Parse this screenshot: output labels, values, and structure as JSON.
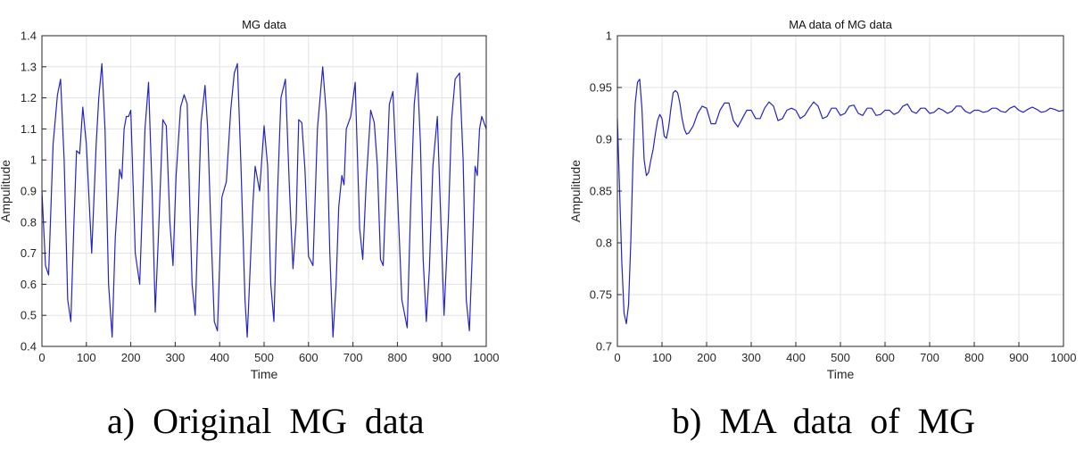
{
  "captions": {
    "a": "a)  Original  MG  data",
    "b": "b)  MA  data  of  MG"
  },
  "chart_data": [
    {
      "type": "line",
      "title": "MG data",
      "xlabel": "Time",
      "ylabel": "Ampulitude",
      "xlim": [
        0,
        1000
      ],
      "ylim": [
        0.4,
        1.4
      ],
      "xticks": [
        0,
        100,
        200,
        300,
        400,
        500,
        600,
        700,
        800,
        900,
        1000
      ],
      "yticks": [
        0.4,
        0.5,
        0.6,
        0.7,
        0.8,
        0.9,
        1,
        1.1,
        1.2,
        1.3,
        1.4
      ],
      "grid": true,
      "line_color": "#2323c8",
      "series": [
        {
          "x": [
            0,
            8,
            15,
            25,
            35,
            42,
            50,
            58,
            65,
            72,
            78,
            85,
            92,
            100,
            112,
            122,
            128,
            135,
            142,
            150,
            158,
            165,
            175,
            180,
            185,
            190,
            195,
            200,
            210,
            220,
            232,
            240,
            248,
            255,
            262,
            272,
            280,
            288,
            295,
            302,
            312,
            320,
            327,
            333,
            338,
            345,
            358,
            367,
            373,
            380,
            388,
            395,
            405,
            415,
            425,
            433,
            440,
            448,
            457,
            462,
            470,
            475,
            480,
            490,
            500,
            508,
            515,
            522,
            530,
            538,
            548,
            557,
            565,
            572,
            578,
            585,
            592,
            600,
            610,
            620,
            632,
            640,
            648,
            655,
            662,
            668,
            675,
            680,
            685,
            695,
            705,
            715,
            722,
            730,
            740,
            748,
            755,
            762,
            768,
            775,
            782,
            790,
            800,
            810,
            822,
            830,
            838,
            845,
            852,
            858,
            865,
            872,
            880,
            890,
            905,
            915,
            922,
            930,
            940,
            948,
            955,
            962,
            968,
            975,
            980,
            985,
            990,
            995,
            1000
          ],
          "y": [
            0.9,
            0.66,
            0.63,
            1.05,
            1.21,
            1.26,
            1.0,
            0.55,
            0.48,
            0.8,
            1.03,
            1.02,
            1.17,
            1.05,
            0.7,
            1.05,
            1.2,
            1.31,
            1.1,
            0.6,
            0.43,
            0.75,
            0.97,
            0.94,
            1.1,
            1.14,
            1.14,
            1.16,
            0.7,
            0.6,
            1.1,
            1.25,
            0.9,
            0.51,
            0.75,
            1.13,
            1.11,
            0.8,
            0.66,
            0.95,
            1.17,
            1.21,
            1.18,
            0.85,
            0.6,
            0.5,
            1.12,
            1.24,
            1.1,
            0.8,
            0.48,
            0.45,
            0.88,
            0.93,
            1.16,
            1.28,
            1.31,
            0.98,
            0.55,
            0.43,
            0.7,
            0.86,
            0.98,
            0.9,
            1.11,
            0.98,
            0.6,
            0.48,
            0.88,
            1.2,
            1.26,
            0.91,
            0.65,
            0.8,
            1.13,
            1.12,
            0.97,
            0.69,
            0.66,
            1.1,
            1.3,
            1.15,
            0.7,
            0.43,
            0.6,
            0.85,
            0.95,
            0.92,
            1.1,
            1.14,
            1.25,
            0.78,
            0.68,
            0.93,
            1.16,
            1.12,
            0.98,
            0.68,
            0.66,
            0.92,
            1.18,
            1.22,
            0.9,
            0.55,
            0.46,
            0.85,
            1.18,
            1.28,
            1.05,
            0.68,
            0.48,
            0.65,
            0.98,
            1.14,
            0.5,
            0.82,
            1.13,
            1.26,
            1.28,
            1.0,
            0.55,
            0.45,
            0.68,
            0.98,
            0.95,
            1.1,
            1.14,
            1.12,
            1.1
          ]
        }
      ]
    },
    {
      "type": "line",
      "title": "MA data of MG data",
      "xlabel": "Time",
      "ylabel": "Ampulitude",
      "xlim": [
        0,
        1000
      ],
      "ylim": [
        0.7,
        1
      ],
      "xticks": [
        0,
        100,
        200,
        300,
        400,
        500,
        600,
        700,
        800,
        900,
        1000
      ],
      "yticks": [
        0.7,
        0.75,
        0.8,
        0.85,
        0.9,
        0.95,
        1
      ],
      "grid": true,
      "line_color": "#2323c8",
      "series": [
        {
          "x": [
            0,
            5,
            10,
            15,
            20,
            25,
            30,
            35,
            40,
            45,
            50,
            55,
            60,
            65,
            70,
            75,
            80,
            85,
            90,
            95,
            100,
            105,
            110,
            115,
            120,
            125,
            130,
            135,
            140,
            145,
            150,
            155,
            160,
            170,
            180,
            190,
            200,
            210,
            220,
            230,
            240,
            250,
            260,
            270,
            280,
            290,
            300,
            310,
            320,
            330,
            340,
            350,
            360,
            370,
            380,
            390,
            400,
            410,
            420,
            430,
            440,
            450,
            460,
            470,
            480,
            490,
            500,
            510,
            520,
            530,
            540,
            550,
            560,
            570,
            580,
            590,
            600,
            610,
            620,
            630,
            640,
            650,
            660,
            670,
            680,
            690,
            700,
            710,
            720,
            730,
            740,
            750,
            760,
            770,
            780,
            790,
            800,
            810,
            820,
            830,
            840,
            850,
            860,
            870,
            880,
            890,
            900,
            910,
            920,
            930,
            940,
            950,
            960,
            970,
            980,
            990,
            1000
          ],
          "y": [
            0.92,
            0.85,
            0.78,
            0.732,
            0.722,
            0.74,
            0.8,
            0.88,
            0.935,
            0.955,
            0.958,
            0.93,
            0.88,
            0.865,
            0.868,
            0.88,
            0.89,
            0.905,
            0.918,
            0.924,
            0.92,
            0.903,
            0.901,
            0.912,
            0.93,
            0.945,
            0.947,
            0.945,
            0.935,
            0.92,
            0.91,
            0.905,
            0.906,
            0.913,
            0.925,
            0.932,
            0.93,
            0.915,
            0.915,
            0.928,
            0.935,
            0.935,
            0.918,
            0.912,
            0.92,
            0.928,
            0.928,
            0.92,
            0.92,
            0.93,
            0.936,
            0.932,
            0.918,
            0.92,
            0.928,
            0.93,
            0.928,
            0.92,
            0.923,
            0.93,
            0.936,
            0.932,
            0.92,
            0.922,
            0.93,
            0.93,
            0.923,
            0.925,
            0.932,
            0.933,
            0.925,
            0.923,
            0.93,
            0.93,
            0.923,
            0.924,
            0.928,
            0.928,
            0.924,
            0.926,
            0.932,
            0.934,
            0.927,
            0.925,
            0.93,
            0.93,
            0.925,
            0.926,
            0.93,
            0.928,
            0.925,
            0.927,
            0.932,
            0.932,
            0.927,
            0.925,
            0.928,
            0.928,
            0.926,
            0.927,
            0.93,
            0.93,
            0.927,
            0.926,
            0.93,
            0.932,
            0.928,
            0.926,
            0.929,
            0.931,
            0.929,
            0.926,
            0.927,
            0.93,
            0.929,
            0.927,
            0.928
          ]
        }
      ]
    }
  ]
}
